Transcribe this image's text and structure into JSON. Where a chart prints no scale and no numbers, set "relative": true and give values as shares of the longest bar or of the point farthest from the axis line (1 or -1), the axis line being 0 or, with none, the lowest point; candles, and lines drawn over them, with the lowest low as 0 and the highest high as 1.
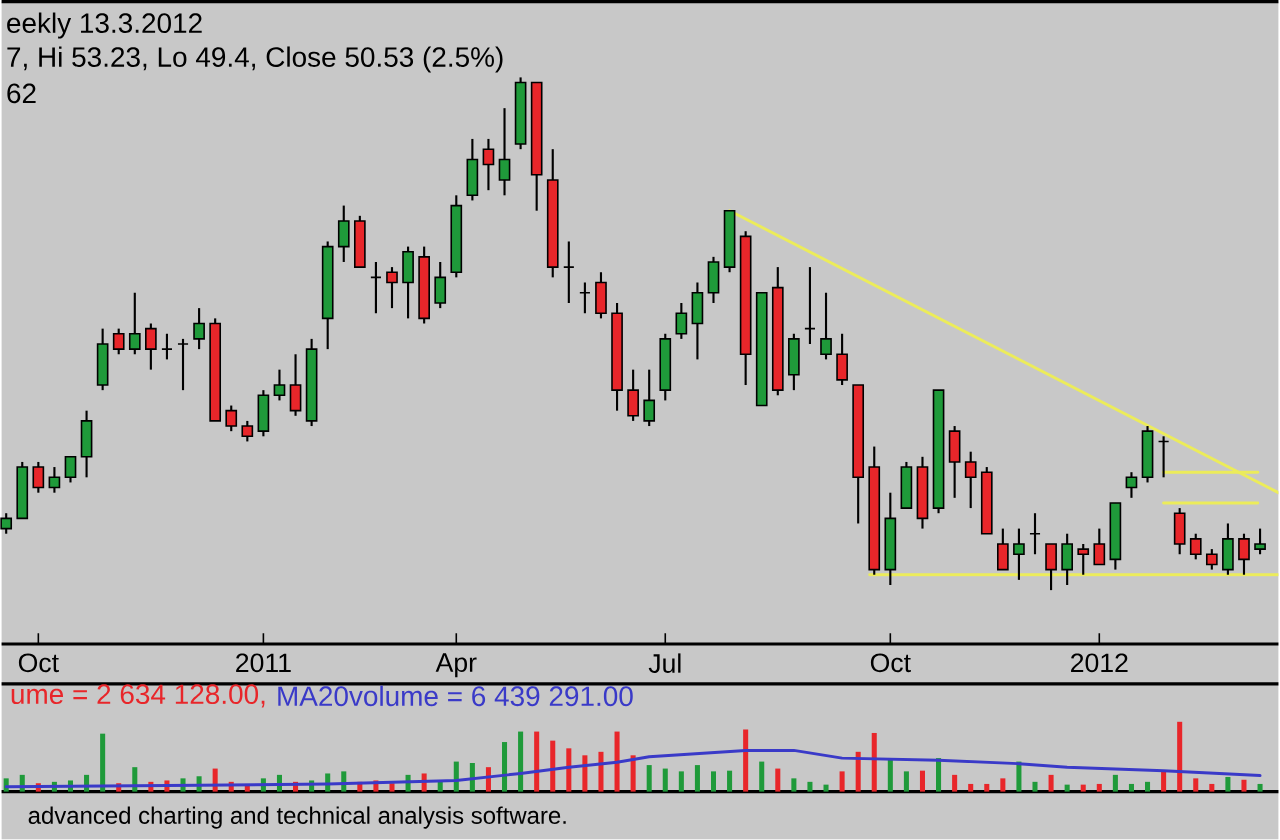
{
  "chart_data": [
    {
      "type": "candlestick",
      "title": "eekly 13.3.2012",
      "subtitle": "7, Hi 53.23, Lo 49.4, Close 50.53 (2.5%)",
      "annotations": [
        "62"
      ],
      "relative": true,
      "x": [
        "2010-09-17",
        "2010-09-24",
        "2010-10-01",
        "2010-10-08",
        "2010-10-15",
        "2010-10-22",
        "2010-10-29",
        "2010-11-05",
        "2010-11-12",
        "2010-11-19",
        "2010-11-26",
        "2010-12-03",
        "2010-12-10",
        "2010-12-17",
        "2010-12-24",
        "2010-12-31",
        "2011-01-07",
        "2011-01-14",
        "2011-01-21",
        "2011-01-28",
        "2011-02-04",
        "2011-02-11",
        "2011-02-18",
        "2011-02-25",
        "2011-03-04",
        "2011-03-11",
        "2011-03-18",
        "2011-03-25",
        "2011-04-01",
        "2011-04-08",
        "2011-04-15",
        "2011-04-22",
        "2011-04-29",
        "2011-05-06",
        "2011-05-13",
        "2011-05-20",
        "2011-05-27",
        "2011-06-03",
        "2011-06-10",
        "2011-06-17",
        "2011-06-24",
        "2011-07-01",
        "2011-07-08",
        "2011-07-15",
        "2011-07-22",
        "2011-07-29",
        "2011-08-05",
        "2011-08-12",
        "2011-08-19",
        "2011-08-26",
        "2011-09-02",
        "2011-09-09",
        "2011-09-16",
        "2011-09-23",
        "2011-09-30",
        "2011-10-07",
        "2011-10-14",
        "2011-10-21",
        "2011-10-28",
        "2011-11-04",
        "2011-11-11",
        "2011-11-18",
        "2011-11-25",
        "2011-12-02",
        "2011-12-09",
        "2011-12-16",
        "2011-12-23",
        "2011-12-30",
        "2012-01-06",
        "2012-01-13",
        "2012-01-20",
        "2012-01-27",
        "2012-02-03",
        "2012-02-10",
        "2012-02-17",
        "2012-02-24",
        "2012-03-02",
        "2012-03-09",
        "2012-03-16"
      ],
      "ohlc": [
        [
          0.12,
          0.15,
          0.11,
          0.14
        ],
        [
          0.14,
          0.25,
          0.14,
          0.24
        ],
        [
          0.24,
          0.25,
          0.19,
          0.2
        ],
        [
          0.2,
          0.24,
          0.19,
          0.22
        ],
        [
          0.22,
          0.26,
          0.21,
          0.26
        ],
        [
          0.26,
          0.35,
          0.22,
          0.33
        ],
        [
          0.4,
          0.51,
          0.39,
          0.48
        ],
        [
          0.5,
          0.51,
          0.46,
          0.47
        ],
        [
          0.47,
          0.58,
          0.46,
          0.5
        ],
        [
          0.51,
          0.52,
          0.43,
          0.47
        ],
        [
          0.47,
          0.5,
          0.45,
          0.47
        ],
        [
          0.48,
          0.49,
          0.39,
          0.48
        ],
        [
          0.49,
          0.55,
          0.47,
          0.52
        ],
        [
          0.52,
          0.53,
          0.33,
          0.33
        ],
        [
          0.35,
          0.36,
          0.31,
          0.32
        ],
        [
          0.32,
          0.33,
          0.29,
          0.3
        ],
        [
          0.31,
          0.39,
          0.3,
          0.38
        ],
        [
          0.38,
          0.43,
          0.37,
          0.4
        ],
        [
          0.4,
          0.46,
          0.34,
          0.35
        ],
        [
          0.33,
          0.49,
          0.32,
          0.47
        ],
        [
          0.53,
          0.68,
          0.47,
          0.67
        ],
        [
          0.67,
          0.75,
          0.64,
          0.72
        ],
        [
          0.72,
          0.73,
          0.63,
          0.63
        ],
        [
          0.61,
          0.64,
          0.54,
          0.61
        ],
        [
          0.62,
          0.63,
          0.55,
          0.6
        ],
        [
          0.6,
          0.67,
          0.53,
          0.66
        ],
        [
          0.65,
          0.67,
          0.52,
          0.53
        ],
        [
          0.56,
          0.64,
          0.55,
          0.61
        ],
        [
          0.62,
          0.77,
          0.61,
          0.75
        ],
        [
          0.77,
          0.88,
          0.76,
          0.84
        ],
        [
          0.86,
          0.88,
          0.78,
          0.83
        ],
        [
          0.8,
          0.94,
          0.77,
          0.84
        ],
        [
          0.87,
          1,
          0.86,
          0.99
        ],
        [
          0.99,
          0.99,
          0.74,
          0.81
        ],
        [
          0.8,
          0.86,
          0.61,
          0.63
        ],
        [
          0.63,
          0.68,
          0.56,
          0.63
        ],
        [
          0.58,
          0.6,
          0.54,
          0.58
        ],
        [
          0.6,
          0.62,
          0.53,
          0.54
        ],
        [
          0.54,
          0.56,
          0.35,
          0.39
        ],
        [
          0.39,
          0.43,
          0.33,
          0.34
        ],
        [
          0.33,
          0.43,
          0.32,
          0.37
        ],
        [
          0.39,
          0.5,
          0.37,
          0.49
        ],
        [
          0.5,
          0.56,
          0.49,
          0.54
        ],
        [
          0.52,
          0.6,
          0.45,
          0.58
        ],
        [
          0.58,
          0.65,
          0.56,
          0.64
        ],
        [
          0.63,
          0.74,
          0.62,
          0.74
        ],
        [
          0.69,
          0.7,
          0.4,
          0.46
        ],
        [
          0.36,
          0.58,
          0.36,
          0.58
        ],
        [
          0.59,
          0.63,
          0.38,
          0.39
        ],
        [
          0.42,
          0.5,
          0.39,
          0.49
        ],
        [
          0.51,
          0.63,
          0.48,
          0.51
        ],
        [
          0.46,
          0.58,
          0.45,
          0.49
        ],
        [
          0.46,
          0.5,
          0.4,
          0.41
        ],
        [
          0.4,
          0.4,
          0.13,
          0.22
        ],
        [
          0.24,
          0.28,
          0.03,
          0.04
        ],
        [
          0.04,
          0.19,
          0.01,
          0.14
        ],
        [
          0.16,
          0.25,
          0.16,
          0.24
        ],
        [
          0.24,
          0.26,
          0.12,
          0.14
        ],
        [
          0.16,
          0.39,
          0.15,
          0.39
        ],
        [
          0.31,
          0.32,
          0.18,
          0.25
        ],
        [
          0.25,
          0.27,
          0.16,
          0.22
        ],
        [
          0.23,
          0.24,
          0.11,
          0.11
        ],
        [
          0.09,
          0.12,
          0.04,
          0.04
        ],
        [
          0.07,
          0.12,
          0.02,
          0.09
        ],
        [
          0.11,
          0.15,
          0.07,
          0.11
        ],
        [
          0.09,
          0.09,
          0,
          0.04
        ],
        [
          0.04,
          0.11,
          0.01,
          0.09
        ],
        [
          0.08,
          0.09,
          0.03,
          0.07
        ],
        [
          0.09,
          0.12,
          0.05,
          0.05
        ],
        [
          0.06,
          0.17,
          0.04,
          0.17
        ],
        [
          0.2,
          0.23,
          0.18,
          0.22
        ],
        [
          0.22,
          0.32,
          0.21,
          0.31
        ],
        [
          0.29,
          0.3,
          0.22,
          0.29
        ],
        [
          0.15,
          0.16,
          0.07,
          0.09
        ],
        [
          0.1,
          0.11,
          0.06,
          0.07
        ],
        [
          0.07,
          0.08,
          0.04,
          0.05
        ],
        [
          0.04,
          0.13,
          0.03,
          0.1
        ],
        [
          0.1,
          0.11,
          0.03,
          0.06
        ],
        [
          0.08,
          0.12,
          0.07,
          0.09
        ]
      ],
      "colors": [
        "#1f9a3a",
        "#1f9a3a",
        "#e8262a",
        "#1f9a3a",
        "#1f9a3a",
        "#1f9a3a",
        "#1f9a3a",
        "#e8262a",
        "#1f9a3a",
        "#e8262a",
        "#000000",
        "#000000",
        "#1f9a3a",
        "#e8262a",
        "#e8262a",
        "#e8262a",
        "#1f9a3a",
        "#1f9a3a",
        "#e8262a",
        "#1f9a3a",
        "#1f9a3a",
        "#1f9a3a",
        "#e8262a",
        "#000000",
        "#e8262a",
        "#1f9a3a",
        "#e8262a",
        "#1f9a3a",
        "#1f9a3a",
        "#1f9a3a",
        "#e8262a",
        "#1f9a3a",
        "#1f9a3a",
        "#e8262a",
        "#e8262a",
        "#000000",
        "#000000",
        "#e8262a",
        "#e8262a",
        "#e8262a",
        "#1f9a3a",
        "#1f9a3a",
        "#1f9a3a",
        "#1f9a3a",
        "#1f9a3a",
        "#1f9a3a",
        "#e8262a",
        "#1f9a3a",
        "#e8262a",
        "#1f9a3a",
        "#000000",
        "#1f9a3a",
        "#e8262a",
        "#e8262a",
        "#e8262a",
        "#1f9a3a",
        "#1f9a3a",
        "#e8262a",
        "#1f9a3a",
        "#e8262a",
        "#e8262a",
        "#e8262a",
        "#e8262a",
        "#1f9a3a",
        "#000000",
        "#e8262a",
        "#1f9a3a",
        "#e8262a",
        "#e8262a",
        "#1f9a3a",
        "#1f9a3a",
        "#1f9a3a",
        "#000000",
        "#e8262a",
        "#e8262a",
        "#e8262a",
        "#1f9a3a",
        "#e8262a",
        "#1f9a3a"
      ],
      "xlim": [
        "2010-09-15",
        "2012-03-24"
      ],
      "xticks": [
        {
          "value": "2010-10-01",
          "label": "Oct"
        },
        {
          "value": "2011-01-07",
          "label": "2011"
        },
        {
          "value": "2011-04-01",
          "label": "Apr"
        },
        {
          "value": "2011-07-01",
          "label": "Jul"
        },
        {
          "value": "2011-10-07",
          "label": "Oct"
        },
        {
          "value": "2012-01-06",
          "label": "2012"
        }
      ],
      "series": [
        {
          "type": "line",
          "color": "#ecec5a",
          "x": [
            "2011-07-29",
            "2012-03-24"
          ],
          "values": [
            0.74,
            0.19
          ]
        },
        {
          "type": "line",
          "color": "#ecec5a",
          "x": [
            "2011-09-28",
            "2012-03-24"
          ],
          "values": [
            0.03,
            0.03
          ]
        },
        {
          "type": "line",
          "color": "#ecec5a",
          "x": [
            "2012-02-03",
            "2012-03-15"
          ],
          "values": [
            0.23,
            0.23
          ]
        },
        {
          "type": "line",
          "color": "#ecec5a",
          "x": [
            "2012-02-03",
            "2012-03-15"
          ],
          "values": [
            0.17,
            0.17
          ]
        }
      ]
    },
    {
      "type": "bar",
      "relative": true,
      "tick_labels": false,
      "annotations": [
        "advanced charting and technical analysis software."
      ],
      "xlim": [
        "2010-09-15",
        "2012-03-24"
      ],
      "x": [
        "2010-09-17",
        "2010-09-24",
        "2010-10-01",
        "2010-10-08",
        "2010-10-15",
        "2010-10-22",
        "2010-10-29",
        "2010-11-05",
        "2010-11-12",
        "2010-11-19",
        "2010-11-26",
        "2010-12-03",
        "2010-12-10",
        "2010-12-17",
        "2010-12-24",
        "2010-12-31",
        "2011-01-07",
        "2011-01-14",
        "2011-01-21",
        "2011-01-28",
        "2011-02-04",
        "2011-02-11",
        "2011-02-18",
        "2011-02-25",
        "2011-03-04",
        "2011-03-11",
        "2011-03-18",
        "2011-03-25",
        "2011-04-01",
        "2011-04-08",
        "2011-04-15",
        "2011-04-22",
        "2011-04-29",
        "2011-05-06",
        "2011-05-13",
        "2011-05-20",
        "2011-05-27",
        "2011-06-03",
        "2011-06-10",
        "2011-06-17",
        "2011-06-24",
        "2011-07-01",
        "2011-07-08",
        "2011-07-15",
        "2011-07-22",
        "2011-07-29",
        "2011-08-05",
        "2011-08-12",
        "2011-08-19",
        "2011-08-26",
        "2011-09-02",
        "2011-09-09",
        "2011-09-16",
        "2011-09-23",
        "2011-09-30",
        "2011-10-07",
        "2011-10-14",
        "2011-10-21",
        "2011-10-28",
        "2011-11-04",
        "2011-11-11",
        "2011-11-18",
        "2011-11-25",
        "2011-12-02",
        "2011-12-09",
        "2011-12-16",
        "2011-12-23",
        "2011-12-30",
        "2012-01-06",
        "2012-01-13",
        "2012-01-20",
        "2012-01-27",
        "2012-02-03",
        "2012-02-10",
        "2012-02-17",
        "2012-02-24",
        "2012-03-02",
        "2012-03-09",
        "2012-03-16"
      ],
      "series": [
        {
          "name": "ume = 2 634 128.00,",
          "color": "#e8262a",
          "values": [
            0.19,
            0.24,
            0.12,
            0.14,
            0.16,
            0.24,
            0.83,
            0.12,
            0.35,
            0.14,
            0.16,
            0.19,
            0.22,
            0.33,
            0.14,
            0.11,
            0.19,
            0.24,
            0.14,
            0.16,
            0.26,
            0.29,
            0.14,
            0.16,
            0.12,
            0.24,
            0.26,
            0.14,
            0.43,
            0.41,
            0.35,
            0.71,
            0.86,
            0.86,
            0.73,
            0.62,
            0.52,
            0.57,
            0.86,
            0.52,
            0.38,
            0.33,
            0.29,
            0.38,
            0.29,
            0.3,
            0.89,
            0.43,
            0.33,
            0.19,
            0.14,
            0.1,
            0.29,
            0.57,
            0.84,
            0.48,
            0.29,
            0.3,
            0.48,
            0.24,
            0.11,
            0.11,
            0.19,
            0.43,
            0.14,
            0.24,
            0.1,
            0.1,
            0.11,
            0.24,
            0.11,
            0.14,
            0.29,
            1,
            0.19,
            0.11,
            0.21,
            0.17,
            0.11
          ],
          "colors": [
            "#1f9a3a",
            "#1f9a3a",
            "#e8262a",
            "#1f9a3a",
            "#1f9a3a",
            "#1f9a3a",
            "#1f9a3a",
            "#e8262a",
            "#1f9a3a",
            "#e8262a",
            "#e8262a",
            "#1f9a3a",
            "#1f9a3a",
            "#e8262a",
            "#e8262a",
            "#e8262a",
            "#1f9a3a",
            "#1f9a3a",
            "#e8262a",
            "#1f9a3a",
            "#1f9a3a",
            "#1f9a3a",
            "#e8262a",
            "#e8262a",
            "#e8262a",
            "#1f9a3a",
            "#e8262a",
            "#1f9a3a",
            "#1f9a3a",
            "#1f9a3a",
            "#e8262a",
            "#1f9a3a",
            "#1f9a3a",
            "#e8262a",
            "#e8262a",
            "#e8262a",
            "#e8262a",
            "#e8262a",
            "#e8262a",
            "#e8262a",
            "#1f9a3a",
            "#1f9a3a",
            "#1f9a3a",
            "#1f9a3a",
            "#1f9a3a",
            "#1f9a3a",
            "#e8262a",
            "#1f9a3a",
            "#e8262a",
            "#1f9a3a",
            "#1f9a3a",
            "#1f9a3a",
            "#e8262a",
            "#e8262a",
            "#e8262a",
            "#1f9a3a",
            "#1f9a3a",
            "#e8262a",
            "#1f9a3a",
            "#e8262a",
            "#e8262a",
            "#e8262a",
            "#e8262a",
            "#1f9a3a",
            "#1f9a3a",
            "#e8262a",
            "#1f9a3a",
            "#e8262a",
            "#e8262a",
            "#1f9a3a",
            "#1f9a3a",
            "#1f9a3a",
            "#e8262a",
            "#e8262a",
            "#e8262a",
            "#e8262a",
            "#1f9a3a",
            "#e8262a",
            "#1f9a3a"
          ]
        },
        {
          "type": "line",
          "name": "MA20volume = 6 439 291.00",
          "color": "#3a3ac8",
          "x": [
            "2010-09-17",
            "2010-12-10",
            "2011-02-04",
            "2011-04-01",
            "2011-04-29",
            "2011-05-20",
            "2011-06-10",
            "2011-06-24",
            "2011-08-05",
            "2011-08-26",
            "2011-09-16",
            "2011-10-28",
            "2011-12-02",
            "2011-12-23",
            "2012-02-03",
            "2012-03-16"
          ],
          "values": [
            0.07,
            0.09,
            0.11,
            0.16,
            0.26,
            0.35,
            0.42,
            0.5,
            0.59,
            0.59,
            0.48,
            0.45,
            0.4,
            0.35,
            0.3,
            0.23
          ]
        }
      ]
    }
  ]
}
